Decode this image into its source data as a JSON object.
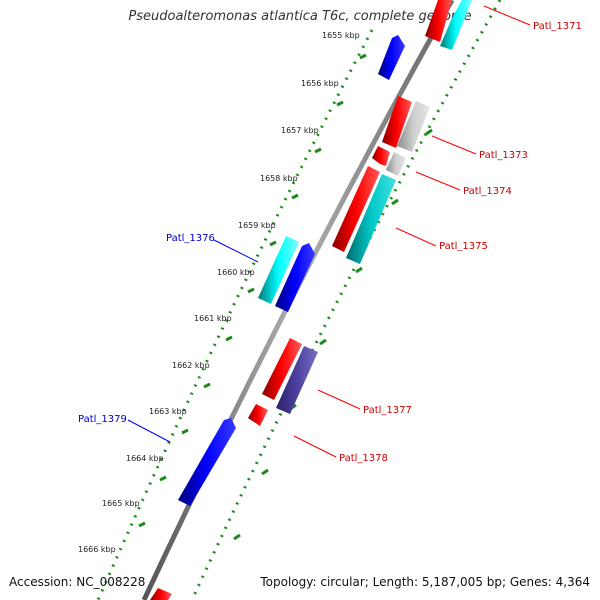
{
  "title": "Pseudoalteromonas atlantica T6c, complete genome",
  "footer": {
    "accession": "Accession: NC_008228",
    "topology": "Topology: circular; Length: 5,187,005 bp; Genes: 4,364"
  },
  "ticks": [
    "1655 kbp",
    "1656 kbp",
    "1657 kbp",
    "1658 kbp",
    "1659 kbp",
    "1660 kbp",
    "1661 kbp",
    "1662 kbp",
    "1663 kbp",
    "1664 kbp",
    "1665 kbp",
    "1666 kbp"
  ],
  "gene_labels": {
    "patl_1371": "Patl_1371",
    "patl_1373": "Patl_1373",
    "patl_1374": "Patl_1374",
    "patl_1375": "Patl_1375",
    "patl_1376": "Patl_1376",
    "patl_1377": "Patl_1377",
    "patl_1378": "Patl_1378",
    "patl_1379": "Patl_1379"
  },
  "colors": {
    "forward_cds": "#0000ff",
    "reverse_cds": "#ff0000",
    "cog_cyan": "#00d8d8",
    "cog_gray": "#b4b4b4",
    "cog_purple": "#4a3f9a",
    "backbone": "#808080",
    "dotted_ring": "#1e8a1e",
    "forward_label": "#0000cc",
    "reverse_label": "#cc0000"
  }
}
